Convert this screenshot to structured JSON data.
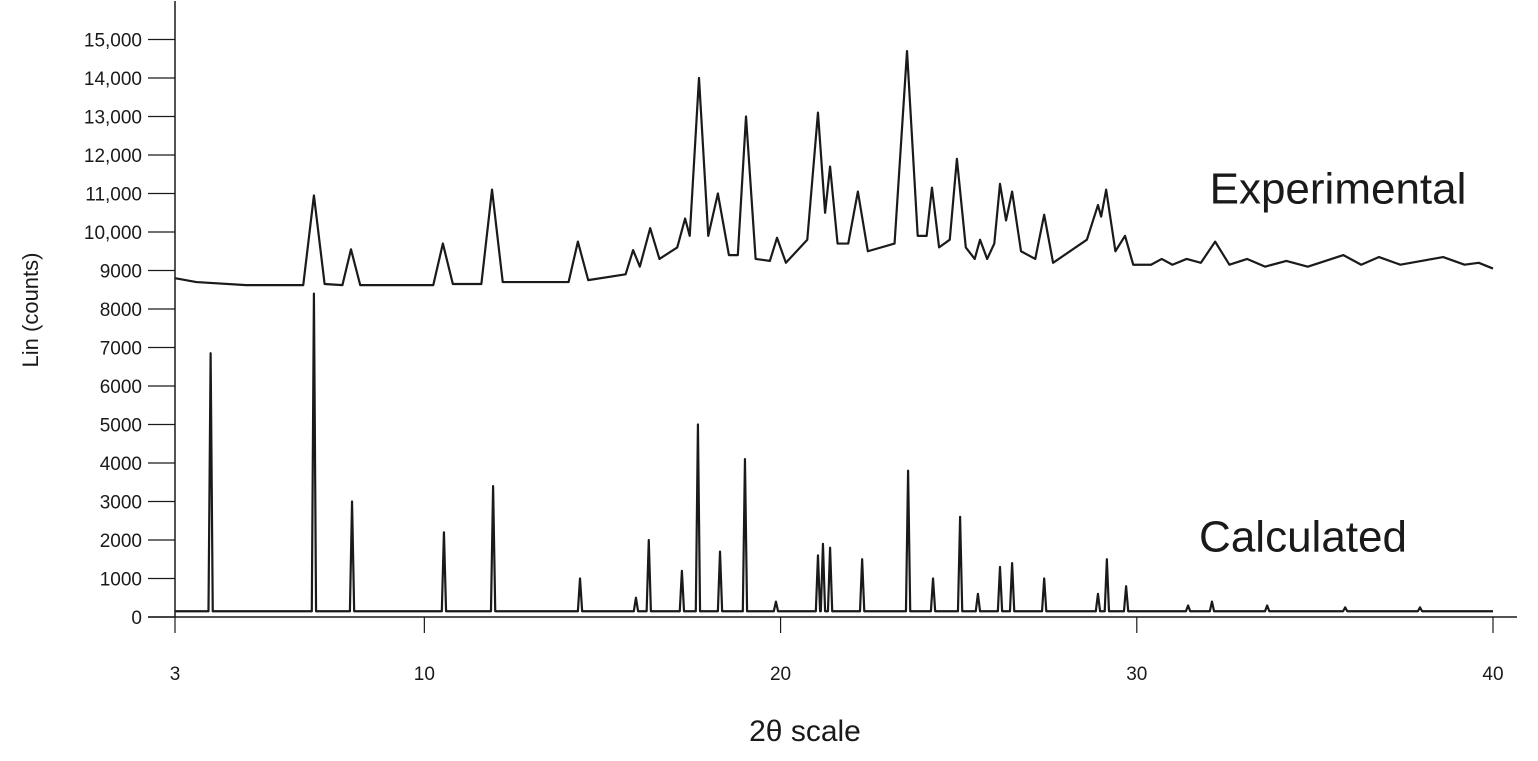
{
  "chart_data": {
    "type": "line",
    "xlabel": "2θ scale",
    "ylabel": "Lin (counts)",
    "xlim": [
      3,
      40
    ],
    "ylim": [
      0,
      16000
    ],
    "xticks": [
      3,
      10,
      20,
      30,
      40
    ],
    "yticks": [
      0,
      1000,
      2000,
      3000,
      4000,
      5000,
      6000,
      7000,
      8000,
      9000,
      {
        "value": 10000,
        "label": "10,000"
      },
      {
        "value": 11000,
        "label": "11,000"
      },
      {
        "value": 12000,
        "label": "12,000"
      },
      {
        "value": 13000,
        "label": "13,000"
      },
      {
        "value": 14000,
        "label": "14,000"
      },
      {
        "value": 15000,
        "label": "15,000"
      }
    ],
    "series": [
      {
        "name": "Experimental",
        "color": "#1a1a1a",
        "x": [
          3,
          3.6,
          5,
          6.6,
          6.9,
          7.2,
          7.7,
          7.94,
          8.2,
          10.25,
          10.52,
          10.8,
          11.6,
          11.9,
          12.2,
          14.05,
          14.31,
          14.6,
          15.65,
          15.86,
          16.05,
          16.34,
          16.6,
          17.1,
          17.32,
          17.45,
          17.71,
          17.97,
          18.24,
          18.55,
          18.8,
          19.03,
          19.3,
          19.7,
          19.9,
          20.15,
          20.75,
          21.05,
          21.25,
          21.39,
          21.6,
          21.9,
          22.17,
          22.45,
          23.2,
          23.55,
          23.85,
          24.1,
          24.25,
          24.45,
          24.75,
          24.95,
          25.2,
          25.45,
          25.6,
          25.8,
          26.0,
          26.16,
          26.33,
          26.5,
          26.75,
          27.15,
          27.4,
          27.65,
          28.6,
          28.91,
          29.0,
          29.14,
          29.4,
          29.67,
          29.9,
          30.4,
          30.7,
          31.0,
          31.4,
          31.8,
          32.2,
          32.6,
          33.1,
          33.6,
          34.2,
          34.8,
          35.8,
          36.3,
          36.8,
          37.4,
          38.6,
          39.2,
          39.6,
          40
        ],
        "values": [
          8800,
          8700,
          8620,
          8620,
          10950,
          8650,
          8620,
          9550,
          8620,
          8620,
          9700,
          8650,
          8650,
          11100,
          8700,
          8700,
          9750,
          8750,
          8900,
          9530,
          9100,
          10100,
          9300,
          9600,
          10350,
          9900,
          14000,
          9900,
          11000,
          9400,
          9400,
          13000,
          9300,
          9250,
          9850,
          9200,
          9800,
          13100,
          10500,
          11700,
          9700,
          9700,
          11050,
          9500,
          9700,
          14700,
          9900,
          9900,
          11150,
          9600,
          9800,
          11900,
          9600,
          9300,
          9800,
          9300,
          9700,
          11250,
          10300,
          11050,
          9500,
          9300,
          10450,
          9200,
          9800,
          10700,
          10400,
          11100,
          9500,
          9900,
          9150,
          9150,
          9300,
          9150,
          9300,
          9200,
          9750,
          9150,
          9300,
          9100,
          9250,
          9100,
          9400,
          9150,
          9350,
          9150,
          9350,
          9150,
          9200,
          9050
        ]
      },
      {
        "name": "Calculated",
        "color": "#1a1a1a",
        "x": [
          3,
          3.94,
          4.0,
          4.06,
          6.84,
          6.9,
          6.96,
          7.91,
          7.97,
          8.03,
          10.49,
          10.55,
          10.61,
          11.87,
          11.93,
          11.99,
          14.31,
          14.37,
          14.43,
          15.88,
          15.94,
          16.0,
          16.24,
          16.3,
          16.36,
          17.17,
          17.23,
          17.29,
          17.62,
          17.68,
          17.74,
          18.24,
          18.3,
          18.36,
          18.94,
          19.0,
          19.06,
          19.81,
          19.87,
          19.93,
          20.99,
          21.05,
          21.11,
          21.13,
          21.19,
          21.25,
          21.33,
          21.39,
          21.45,
          22.23,
          22.29,
          22.35,
          23.52,
          23.58,
          23.64,
          24.22,
          24.28,
          24.34,
          24.98,
          25.04,
          25.1,
          25.48,
          25.54,
          25.6,
          26.1,
          26.16,
          26.22,
          26.44,
          26.5,
          26.56,
          27.34,
          27.4,
          27.46,
          28.85,
          28.91,
          28.97,
          29.1,
          29.16,
          29.22,
          29.64,
          29.7,
          29.76,
          31.38,
          31.44,
          31.5,
          32.05,
          32.11,
          32.17,
          33.6,
          33.66,
          33.72,
          35.79,
          35.85,
          35.91,
          37.89,
          37.95,
          38.01,
          40
        ],
        "values": [
          150,
          150,
          6850,
          150,
          150,
          8400,
          150,
          150,
          3000,
          150,
          150,
          2200,
          150,
          150,
          3400,
          150,
          150,
          1000,
          150,
          150,
          500,
          150,
          150,
          2000,
          150,
          150,
          1200,
          150,
          150,
          5000,
          150,
          150,
          1700,
          150,
          150,
          4100,
          150,
          150,
          400,
          150,
          150,
          1600,
          150,
          150,
          1900,
          150,
          150,
          1800,
          150,
          150,
          1500,
          150,
          150,
          3800,
          150,
          150,
          1000,
          150,
          150,
          2600,
          150,
          150,
          600,
          150,
          150,
          1300,
          150,
          150,
          1400,
          150,
          150,
          1000,
          150,
          150,
          600,
          150,
          150,
          1500,
          150,
          150,
          800,
          150,
          150,
          300,
          150,
          150,
          400,
          150,
          150,
          300,
          150,
          150,
          250,
          150,
          150,
          250,
          150,
          150
        ]
      }
    ]
  }
}
